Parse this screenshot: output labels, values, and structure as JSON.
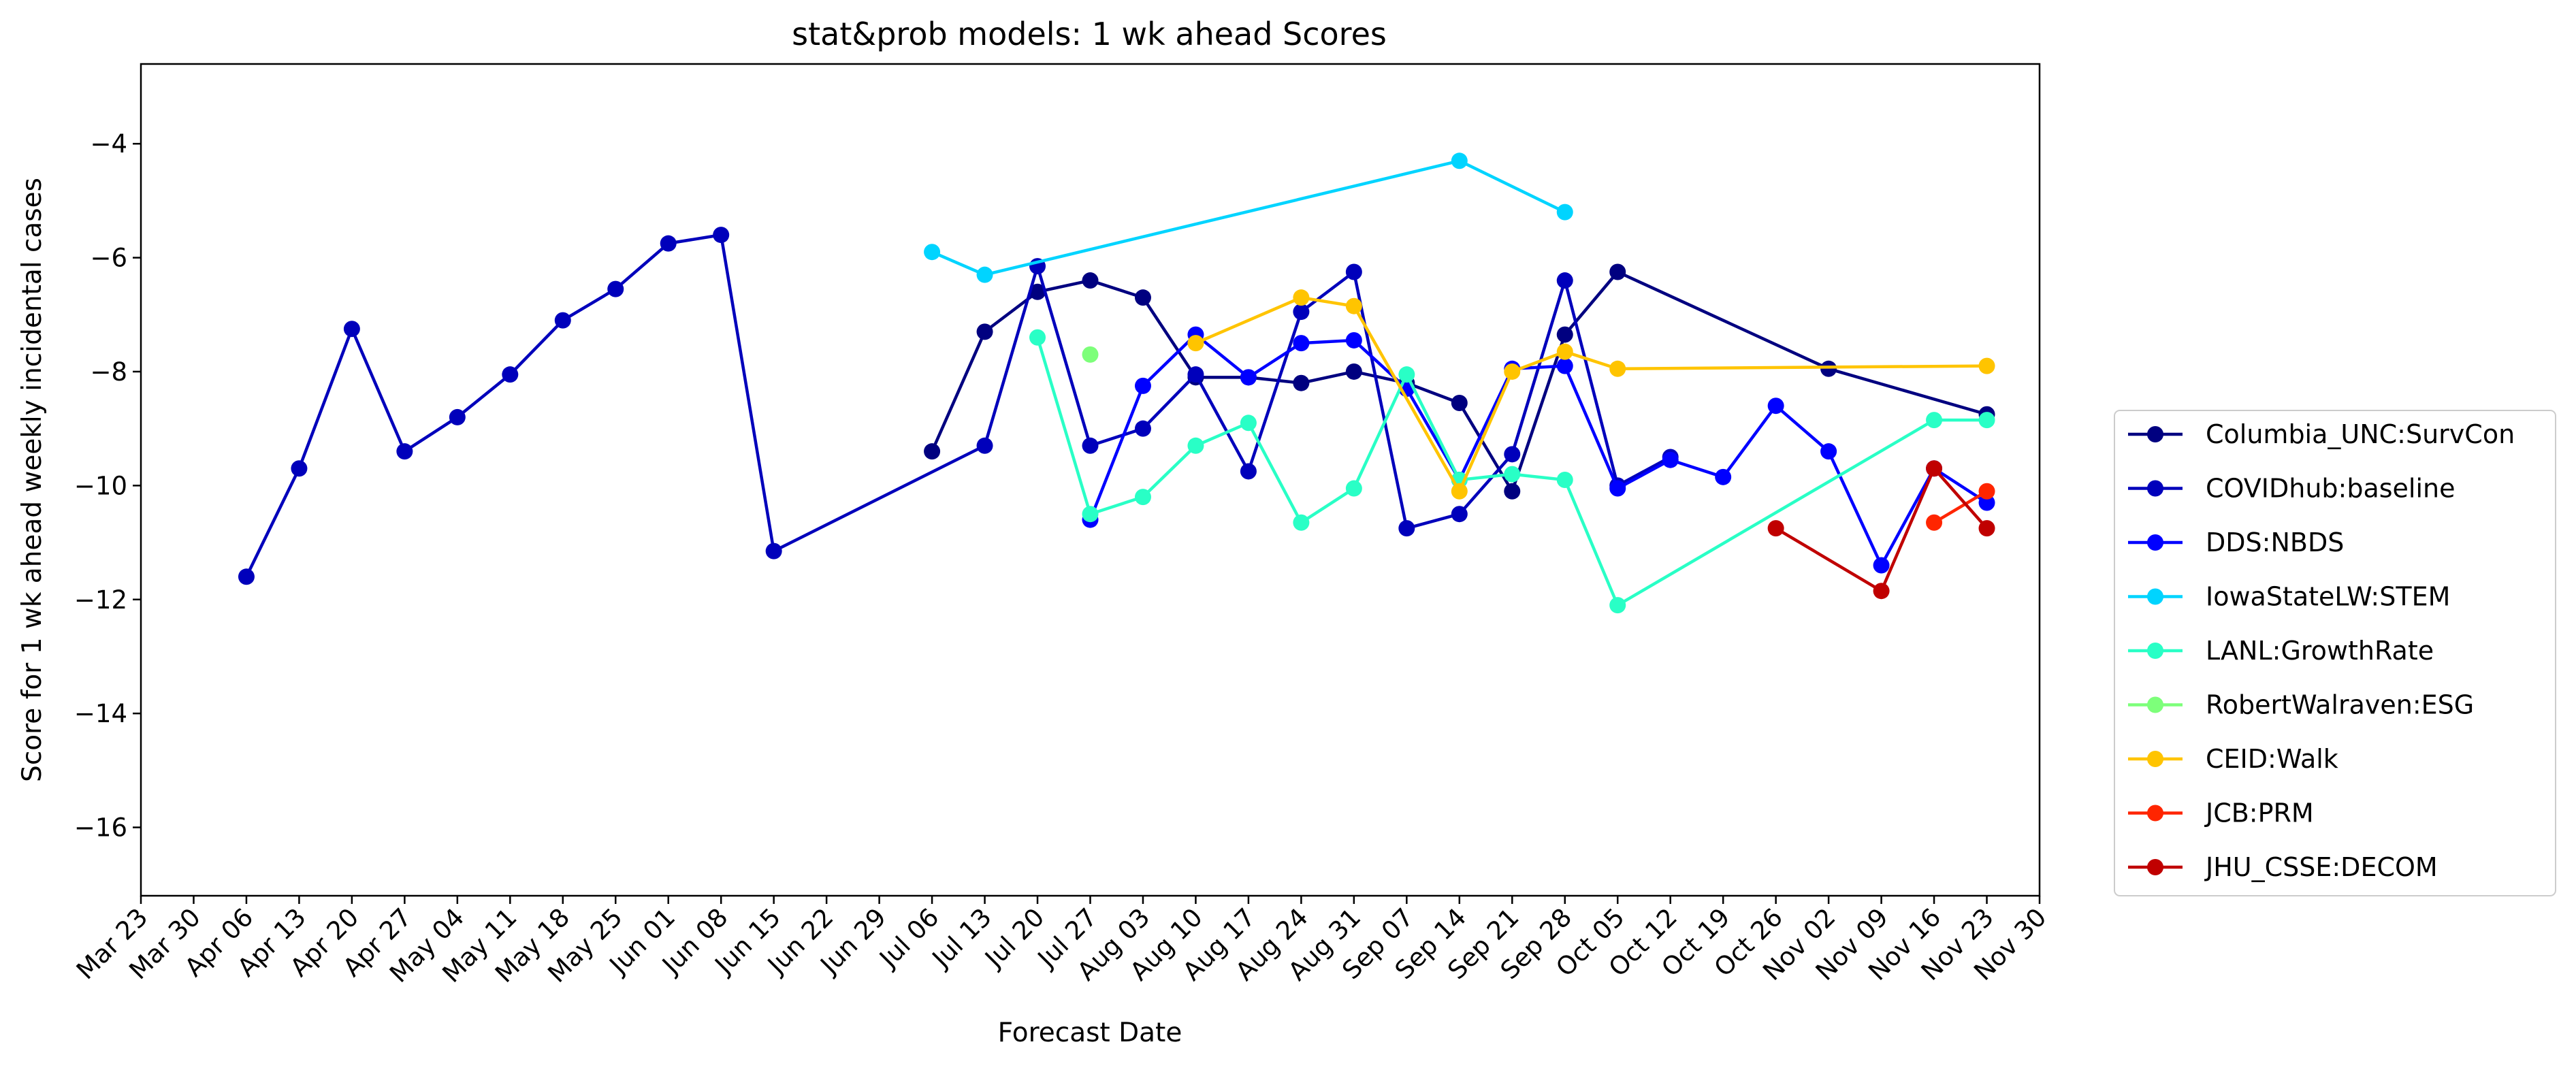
{
  "chart_data": {
    "type": "line",
    "title": "stat&prob models: 1 wk ahead Scores",
    "xlabel": "Forecast Date",
    "ylabel": "Score for 1 wk ahead weekly incidental cases",
    "x_ticks": [
      "Mar 23",
      "Mar 30",
      "Apr 06",
      "Apr 13",
      "Apr 20",
      "Apr 27",
      "May 04",
      "May 11",
      "May 18",
      "May 25",
      "Jun 01",
      "Jun 08",
      "Jun 15",
      "Jun 22",
      "Jun 29",
      "Jul 06",
      "Jul 13",
      "Jul 20",
      "Jul 27",
      "Aug 03",
      "Aug 10",
      "Aug 17",
      "Aug 24",
      "Aug 31",
      "Sep 07",
      "Sep 14",
      "Sep 21",
      "Sep 28",
      "Oct 05",
      "Oct 12",
      "Oct 19",
      "Oct 26",
      "Nov 02",
      "Nov 09",
      "Nov 16",
      "Nov 23",
      "Nov 30"
    ],
    "y_ticks": [
      -4,
      -6,
      -8,
      -10,
      -12,
      -14,
      -16
    ],
    "ylim": [
      -17.2,
      -2.6
    ],
    "xlim": [
      "Mar 23",
      "Nov 30"
    ],
    "grid": false,
    "legend_position": "right",
    "series": [
      {
        "name": "Columbia_UNC:SurvCon",
        "color": "#000080",
        "points": [
          [
            "Jul 06",
            -9.4
          ],
          [
            "Jul 13",
            -7.3
          ],
          [
            "Jul 20",
            -6.6
          ],
          [
            "Jul 27",
            -6.4
          ],
          [
            "Aug 03",
            -6.7
          ],
          [
            "Aug 10",
            -8.1
          ],
          [
            "Aug 17",
            -8.1
          ],
          [
            "Aug 24",
            -8.2
          ],
          [
            "Aug 31",
            -8.0
          ],
          [
            "Sep 07",
            -8.2
          ],
          [
            "Sep 14",
            -8.55
          ],
          [
            "Sep 21",
            -10.1
          ],
          [
            "Sep 28",
            -7.35
          ],
          [
            "Oct 05",
            -6.25
          ],
          [
            "Nov 02",
            -7.95
          ],
          [
            "Nov 23",
            -8.75
          ]
        ]
      },
      {
        "name": "COVIDhub:baseline",
        "color": "#0000bb",
        "points": [
          [
            "Apr 06",
            -11.6
          ],
          [
            "Apr 13",
            -9.7
          ],
          [
            "Apr 20",
            -7.25
          ],
          [
            "Apr 27",
            -9.4
          ],
          [
            "May 04",
            -8.8
          ],
          [
            "May 11",
            -8.05
          ],
          [
            "May 18",
            -7.1
          ],
          [
            "May 25",
            -6.55
          ],
          [
            "Jun 01",
            -5.75
          ],
          [
            "Jun 08",
            -5.6
          ],
          [
            "Jun 15",
            -11.15
          ],
          [
            "Jul 13",
            -9.3
          ],
          [
            "Jul 20",
            -6.15
          ],
          [
            "Jul 27",
            -9.3
          ],
          [
            "Aug 03",
            -9.0
          ],
          [
            "Aug 10",
            -8.05
          ],
          [
            "Aug 17",
            -9.75
          ],
          [
            "Aug 24",
            -6.95
          ],
          [
            "Aug 31",
            -6.25
          ],
          [
            "Sep 07",
            -10.75
          ],
          [
            "Sep 14",
            -10.5
          ],
          [
            "Sep 21",
            -9.45
          ],
          [
            "Sep 28",
            -6.4
          ],
          [
            "Oct 05",
            -10.0
          ],
          [
            "Oct 12",
            -9.5
          ]
        ]
      },
      {
        "name": "DDS:NBDS",
        "color": "#0000ff",
        "points": [
          [
            "Jul 27",
            -10.6
          ],
          [
            "Aug 03",
            -8.25
          ],
          [
            "Aug 10",
            -7.35
          ],
          [
            "Aug 17",
            -8.1
          ],
          [
            "Aug 24",
            -7.5
          ],
          [
            "Aug 31",
            -7.45
          ],
          [
            "Sep 07",
            -8.3
          ],
          [
            "Sep 14",
            -9.9
          ],
          [
            "Sep 21",
            -7.95
          ],
          [
            "Sep 28",
            -7.9
          ],
          [
            "Oct 05",
            -10.05
          ],
          [
            "Oct 12",
            -9.55
          ],
          [
            "Oct 19",
            -9.85
          ],
          [
            "Oct 26",
            -8.6
          ],
          [
            "Nov 02",
            -9.4
          ],
          [
            "Nov 09",
            -11.4
          ],
          [
            "Nov 16",
            -9.7
          ],
          [
            "Nov 23",
            -10.3
          ]
        ]
      },
      {
        "name": "IowaStateLW:STEM",
        "color": "#00d4ff",
        "points": [
          [
            "Jul 06",
            -5.9
          ],
          [
            "Jul 13",
            -6.3
          ],
          [
            "Sep 14",
            -4.3
          ],
          [
            "Sep 28",
            -5.2
          ]
        ]
      },
      {
        "name": "LANL:GrowthRate",
        "color": "#29ffc6",
        "points": [
          [
            "Jul 20",
            -7.4
          ],
          [
            "Jul 27",
            -10.5
          ],
          [
            "Aug 03",
            -10.2
          ],
          [
            "Aug 10",
            -9.3
          ],
          [
            "Aug 17",
            -8.9
          ],
          [
            "Aug 24",
            -10.65
          ],
          [
            "Aug 31",
            -10.05
          ],
          [
            "Sep 07",
            -8.05
          ],
          [
            "Sep 14",
            -9.9
          ],
          [
            "Sep 21",
            -9.8
          ],
          [
            "Sep 28",
            -9.9
          ],
          [
            "Oct 05",
            -12.1
          ],
          [
            "Nov 16",
            -8.85
          ],
          [
            "Nov 23",
            -8.85
          ]
        ]
      },
      {
        "name": "RobertWalraven:ESG",
        "color": "#7dff7a",
        "points": [
          [
            "Jul 27",
            -7.7
          ]
        ]
      },
      {
        "name": "CEID:Walk",
        "color": "#ffc400",
        "points": [
          [
            "Aug 10",
            -7.5
          ],
          [
            "Aug 24",
            -6.7
          ],
          [
            "Aug 31",
            -6.85
          ],
          [
            "Sep 14",
            -10.1
          ],
          [
            "Sep 21",
            -8.0
          ],
          [
            "Sep 28",
            -7.65
          ],
          [
            "Oct 05",
            -7.95
          ],
          [
            "Nov 23",
            -7.9
          ]
        ]
      },
      {
        "name": "JCB:PRM",
        "color": "#ff2500",
        "points": [
          [
            "Nov 16",
            -10.65
          ],
          [
            "Nov 23",
            -10.1
          ]
        ]
      },
      {
        "name": "JHU_CSSE:DECOM",
        "color": "#c00000",
        "points": [
          [
            "Oct 26",
            -10.75
          ],
          [
            "Nov 09",
            -11.85
          ],
          [
            "Nov 16",
            -9.7
          ],
          [
            "Nov 23",
            -10.75
          ]
        ]
      }
    ]
  }
}
